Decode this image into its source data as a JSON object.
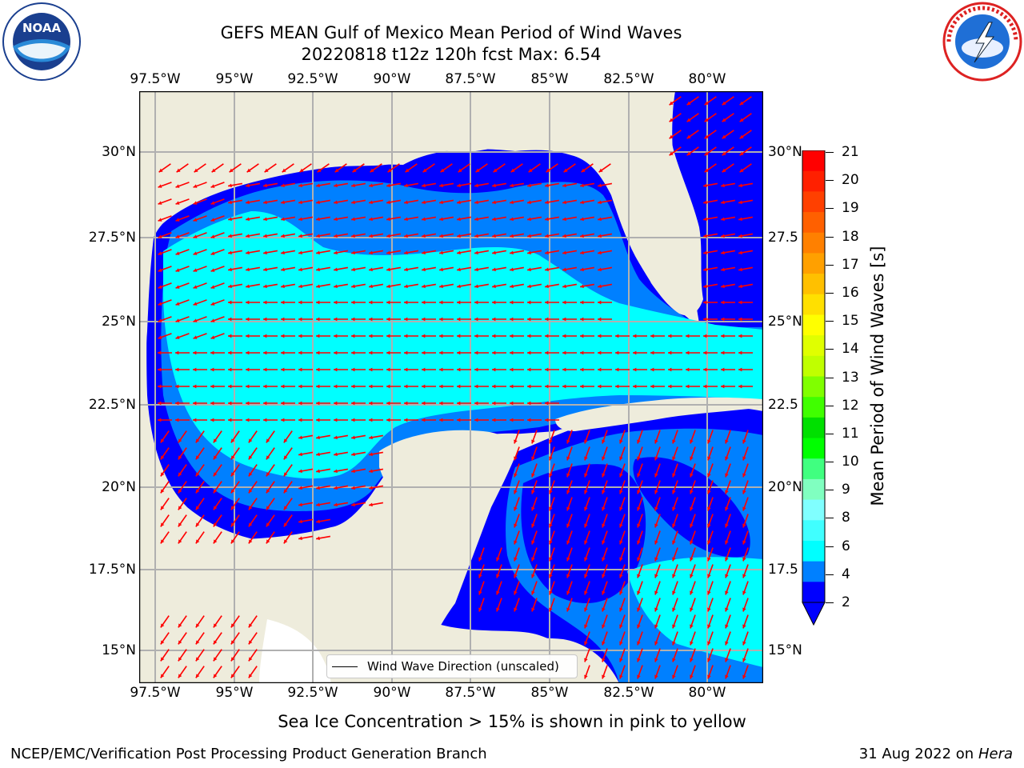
{
  "title": {
    "line1": "GEFS MEAN Gulf of Mexico Mean Period of Wind Waves",
    "line2": "20220818 t12z 120h fcst   Max: 6.54"
  },
  "logos": {
    "left": {
      "name": "NOAA",
      "text": "NOAA"
    },
    "right": {
      "name": "National Weather Service"
    }
  },
  "map": {
    "lon_labels": [
      "97.5°W",
      "95°W",
      "92.5°W",
      "90°W",
      "87.5°W",
      "85°W",
      "82.5°W",
      "80°W"
    ],
    "lat_labels_left": [
      "30°N",
      "27.5°N",
      "25°N",
      "22.5°N",
      "20°N",
      "17.5°N",
      "15°N"
    ],
    "lat_labels_right": [
      "30°N",
      "27.5",
      "25°N",
      "22.5",
      "20°N",
      "17.5",
      "15°N"
    ],
    "colors": {
      "land": "#eeecdc",
      "ocean_low": "#0000ff",
      "ocean_mid": "#0080ff",
      "ocean_high": "#00ffff",
      "arrow": "#ff0000",
      "grid": "#b0b0b0"
    }
  },
  "legend": {
    "label": "Wind Wave Direction (unscaled)"
  },
  "colorbar": {
    "label": "Mean Period of Wind Waves [s]",
    "ticks": [
      "21",
      "20",
      "19",
      "18",
      "17",
      "16",
      "15",
      "14",
      "13",
      "12",
      "11",
      "10",
      "9",
      "8",
      "6",
      "4",
      "2"
    ],
    "colors": [
      "#ff0000",
      "#ff2000",
      "#ff4000",
      "#ff6000",
      "#ff8000",
      "#ffa000",
      "#ffc000",
      "#ffe000",
      "#ffff00",
      "#e0ff00",
      "#c0ff00",
      "#80ff00",
      "#40ff00",
      "#00e000",
      "#00ff00",
      "#40ff80",
      "#80ffc0",
      "#80ffff",
      "#40ffff",
      "#00ffff",
      "#0080ff",
      "#0000ff"
    ]
  },
  "caption": "Sea Ice Concentration > 15% is shown in pink to yellow",
  "footer": {
    "left": "NCEP/EMC/Verification Post Processing Product Generation Branch",
    "right_date": "31 Aug 2022 on",
    "right_host": "Hera"
  }
}
